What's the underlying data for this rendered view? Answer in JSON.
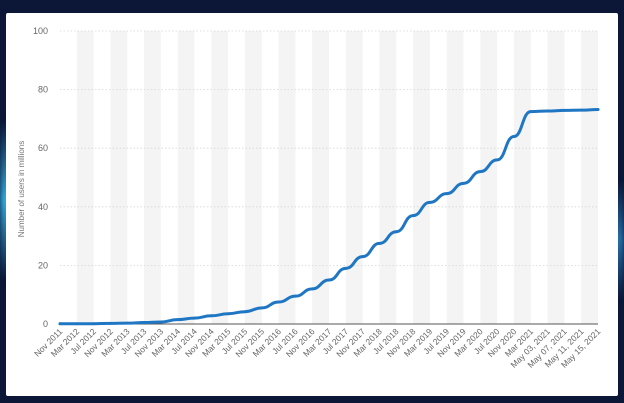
{
  "chart_data": {
    "type": "line",
    "title": "",
    "xlabel": "",
    "ylabel": "Number of users in millions",
    "ylim": [
      0,
      100
    ],
    "yticks": [
      0,
      20,
      40,
      60,
      80,
      100
    ],
    "grid": "horizontal dotted",
    "legend": "none",
    "line_color": "#1f77c4",
    "categories": [
      "Nov 2011",
      "Mar 2012",
      "Jul 2012",
      "Nov 2012",
      "Mar 2013",
      "Jul 2013",
      "Nov 2013",
      "Mar 2014",
      "Jul 2014",
      "Nov 2014",
      "Mar 2015",
      "Jul 2015",
      "Nov 2015",
      "Mar 2016",
      "Jul 2016",
      "Nov 2016",
      "Mar 2017",
      "Jul 2017",
      "Nov 2017",
      "Mar 2018",
      "Jul 2018",
      "Nov 2018",
      "Mar 2019",
      "Jul 2019",
      "Nov 2019",
      "Mar 2020",
      "Jul 2020",
      "Nov 2020",
      "Mar 2021",
      "May 03, 2021",
      "May 07, 2021",
      "May 11, 2021",
      "May 15, 2021"
    ],
    "series": [
      {
        "values": [
          0.1,
          0.1,
          0.1,
          0.2,
          0.3,
          0.5,
          0.7,
          1.5,
          2.0,
          2.8,
          3.5,
          4.2,
          5.5,
          7.5,
          9.5,
          12.0,
          15.0,
          19.0,
          23.0,
          27.5,
          31.5,
          37.0,
          41.5,
          44.5,
          48.0,
          52.0,
          56.0,
          64.0,
          72.5,
          72.7,
          72.9,
          73.0,
          73.2
        ]
      }
    ]
  }
}
